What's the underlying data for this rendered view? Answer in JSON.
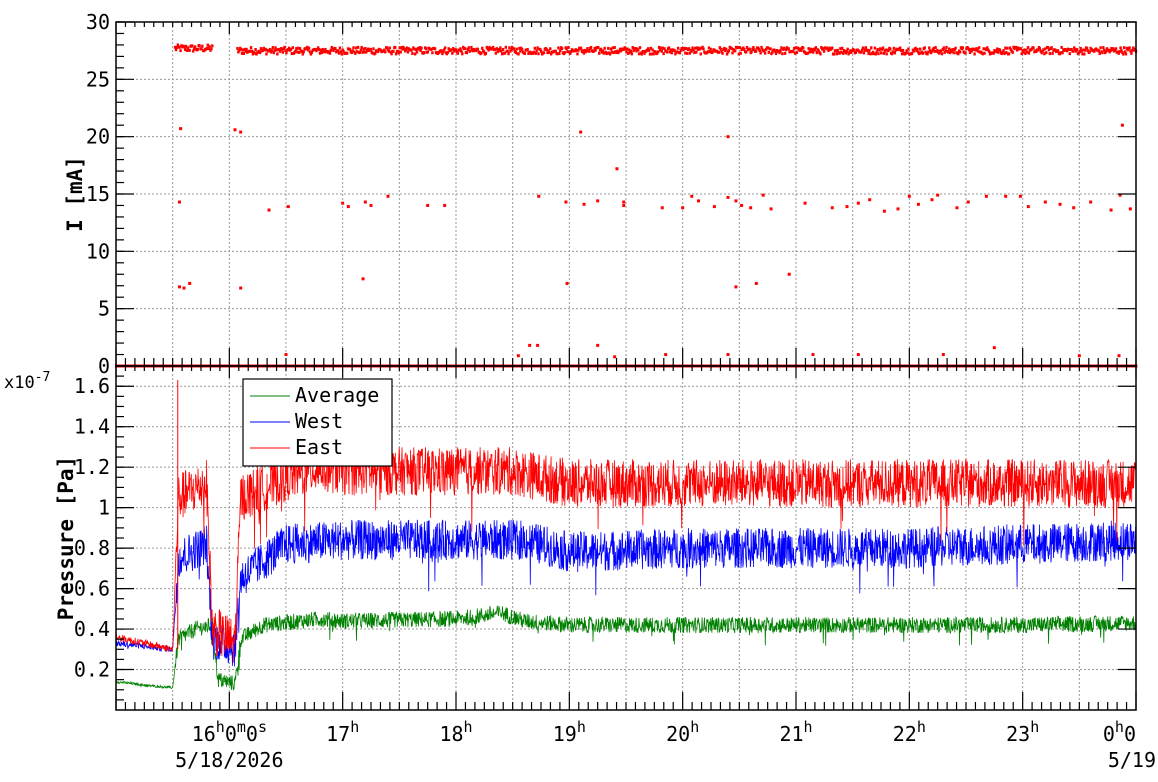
{
  "chart_data": [
    {
      "type": "scatter",
      "panel": "current",
      "ylabel": "I [mA]",
      "ylim": [
        0,
        30
      ],
      "yticks": [
        0,
        5,
        10,
        15,
        20,
        25,
        30
      ],
      "grid": true,
      "xlim_hours": [
        15.0,
        24.0
      ],
      "x_unit": "hour of day 5/18/2026",
      "series": [
        {
          "name": "East",
          "color": "#ff0000",
          "segments": [
            {
              "x_start": 15.52,
              "x_end": 15.85,
              "y": 27.7
            },
            {
              "x_start": 16.07,
              "x_end": 24.0,
              "y": 27.5
            },
            {
              "x_start": 15.0,
              "x_end": 24.0,
              "y": 0.0
            }
          ],
          "points": [
            {
              "x": 15.57,
              "y": 20.7
            },
            {
              "x": 15.56,
              "y": 14.3
            },
            {
              "x": 15.56,
              "y": 6.9
            },
            {
              "x": 15.6,
              "y": 6.8
            },
            {
              "x": 15.65,
              "y": 7.2
            },
            {
              "x": 16.05,
              "y": 20.6
            },
            {
              "x": 16.1,
              "y": 20.4
            },
            {
              "x": 16.1,
              "y": 6.8
            },
            {
              "x": 16.35,
              "y": 13.6
            },
            {
              "x": 16.52,
              "y": 13.9
            },
            {
              "x": 16.5,
              "y": 1.0
            },
            {
              "x": 17.0,
              "y": 14.2
            },
            {
              "x": 17.05,
              "y": 13.9
            },
            {
              "x": 17.2,
              "y": 14.3
            },
            {
              "x": 17.25,
              "y": 14.0
            },
            {
              "x": 17.18,
              "y": 7.6
            },
            {
              "x": 17.4,
              "y": 14.8
            },
            {
              "x": 17.75,
              "y": 14.0
            },
            {
              "x": 17.9,
              "y": 14.0
            },
            {
              "x": 18.73,
              "y": 14.8
            },
            {
              "x": 18.65,
              "y": 1.8
            },
            {
              "x": 18.72,
              "y": 1.8
            },
            {
              "x": 18.97,
              "y": 14.3
            },
            {
              "x": 18.98,
              "y": 7.2
            },
            {
              "x": 19.1,
              "y": 20.4
            },
            {
              "x": 19.13,
              "y": 14.1
            },
            {
              "x": 19.25,
              "y": 14.4
            },
            {
              "x": 19.42,
              "y": 17.2
            },
            {
              "x": 19.48,
              "y": 14.3
            },
            {
              "x": 19.48,
              "y": 14.0
            },
            {
              "x": 19.25,
              "y": 1.8
            },
            {
              "x": 19.82,
              "y": 13.8
            },
            {
              "x": 20.0,
              "y": 13.8
            },
            {
              "x": 20.08,
              "y": 14.8
            },
            {
              "x": 20.14,
              "y": 14.4
            },
            {
              "x": 20.28,
              "y": 13.9
            },
            {
              "x": 20.4,
              "y": 14.7
            },
            {
              "x": 20.4,
              "y": 20.0
            },
            {
              "x": 20.47,
              "y": 14.4
            },
            {
              "x": 20.52,
              "y": 14.0
            },
            {
              "x": 20.6,
              "y": 13.8
            },
            {
              "x": 20.47,
              "y": 6.9
            },
            {
              "x": 20.65,
              "y": 7.2
            },
            {
              "x": 20.71,
              "y": 14.9
            },
            {
              "x": 20.78,
              "y": 13.7
            },
            {
              "x": 20.94,
              "y": 8.0
            },
            {
              "x": 21.08,
              "y": 14.2
            },
            {
              "x": 21.32,
              "y": 13.8
            },
            {
              "x": 21.45,
              "y": 13.9
            },
            {
              "x": 21.55,
              "y": 14.2
            },
            {
              "x": 21.65,
              "y": 14.5
            },
            {
              "x": 21.78,
              "y": 13.5
            },
            {
              "x": 21.9,
              "y": 13.7
            },
            {
              "x": 22.0,
              "y": 14.8
            },
            {
              "x": 22.08,
              "y": 14.1
            },
            {
              "x": 22.2,
              "y": 14.5
            },
            {
              "x": 22.25,
              "y": 14.9
            },
            {
              "x": 22.42,
              "y": 13.8
            },
            {
              "x": 22.52,
              "y": 14.3
            },
            {
              "x": 22.68,
              "y": 14.8
            },
            {
              "x": 22.85,
              "y": 14.8
            },
            {
              "x": 22.98,
              "y": 14.8
            },
            {
              "x": 23.05,
              "y": 13.9
            },
            {
              "x": 23.2,
              "y": 14.3
            },
            {
              "x": 23.33,
              "y": 14.1
            },
            {
              "x": 23.45,
              "y": 13.8
            },
            {
              "x": 23.6,
              "y": 14.3
            },
            {
              "x": 23.78,
              "y": 13.6
            },
            {
              "x": 23.86,
              "y": 14.9
            },
            {
              "x": 23.95,
              "y": 13.7
            },
            {
              "x": 23.88,
              "y": 21.0
            },
            {
              "x": 18.55,
              "y": 0.9
            },
            {
              "x": 19.4,
              "y": 0.8
            },
            {
              "x": 19.85,
              "y": 1.0
            },
            {
              "x": 20.4,
              "y": 1.0
            },
            {
              "x": 21.15,
              "y": 1.0
            },
            {
              "x": 21.55,
              "y": 1.0
            },
            {
              "x": 22.3,
              "y": 1.0
            },
            {
              "x": 22.75,
              "y": 1.6
            },
            {
              "x": 23.5,
              "y": 0.9
            },
            {
              "x": 23.85,
              "y": 0.9
            }
          ]
        }
      ]
    },
    {
      "type": "line",
      "panel": "pressure",
      "ylabel": "Pressure [Pa]",
      "y_multiplier": "x10",
      "y_multiplier_exp": "-7",
      "ylim": [
        0.0,
        1.7
      ],
      "yticks": [
        "0.2",
        "0.4",
        "0.6",
        "0.8",
        "1",
        "1.2",
        "1.4",
        "1.6"
      ],
      "grid": true,
      "legend_placement": "top-left",
      "xlim_hours": [
        15.0,
        24.0
      ],
      "x_tick_labels": [
        {
          "hour": 16,
          "main": "16",
          "sup": "h",
          "main2": "0",
          "sup2": "m",
          "main3": "0",
          "sup3": "s"
        },
        {
          "hour": 17,
          "main": "17",
          "sup": "h"
        },
        {
          "hour": 18,
          "main": "18",
          "sup": "h"
        },
        {
          "hour": 19,
          "main": "19",
          "sup": "h"
        },
        {
          "hour": 20,
          "main": "20",
          "sup": "h"
        },
        {
          "hour": 21,
          "main": "21",
          "sup": "h"
        },
        {
          "hour": 22,
          "main": "22",
          "sup": "h"
        },
        {
          "hour": 23,
          "main": "23",
          "sup": "h"
        },
        {
          "hour": 24,
          "main": "0",
          "sup": "h",
          "main2": "0"
        }
      ],
      "date_labels": [
        {
          "hour": 16,
          "text": "5/18/2026"
        },
        {
          "hour": 24,
          "text": "5/19"
        }
      ],
      "series": [
        {
          "name": "Average",
          "color": "#008000",
          "baseline": [
            [
              15.0,
              0.14
            ],
            [
              15.3,
              0.12
            ],
            [
              15.5,
              0.11
            ],
            [
              15.55,
              0.35
            ],
            [
              15.7,
              0.4
            ],
            [
              15.85,
              0.42
            ],
            [
              15.9,
              0.15
            ],
            [
              16.05,
              0.13
            ],
            [
              16.1,
              0.35
            ],
            [
              16.3,
              0.42
            ],
            [
              16.8,
              0.45
            ],
            [
              17.0,
              0.44
            ],
            [
              18.0,
              0.45
            ],
            [
              18.4,
              0.48
            ],
            [
              18.6,
              0.44
            ],
            [
              19.0,
              0.42
            ],
            [
              20.0,
              0.42
            ],
            [
              21.0,
              0.42
            ],
            [
              22.0,
              0.42
            ],
            [
              23.0,
              0.42
            ],
            [
              24.0,
              0.43
            ]
          ],
          "noise": 0.04
        },
        {
          "name": "West",
          "color": "#0000ff",
          "baseline": [
            [
              15.0,
              0.33
            ],
            [
              15.5,
              0.3
            ],
            [
              15.55,
              0.75
            ],
            [
              15.8,
              0.82
            ],
            [
              15.85,
              0.35
            ],
            [
              16.05,
              0.31
            ],
            [
              16.1,
              0.65
            ],
            [
              16.5,
              0.82
            ],
            [
              17.0,
              0.84
            ],
            [
              18.0,
              0.84
            ],
            [
              18.6,
              0.84
            ],
            [
              19.0,
              0.78
            ],
            [
              20.0,
              0.8
            ],
            [
              21.0,
              0.8
            ],
            [
              22.0,
              0.8
            ],
            [
              23.0,
              0.82
            ],
            [
              24.0,
              0.84
            ]
          ],
          "noise": 0.1
        },
        {
          "name": "East",
          "color": "#ff0000",
          "baseline": [
            [
              15.0,
              0.36
            ],
            [
              15.5,
              0.3
            ],
            [
              15.55,
              1.05
            ],
            [
              15.8,
              1.12
            ],
            [
              15.85,
              0.4
            ],
            [
              16.05,
              0.33
            ],
            [
              16.1,
              1.05
            ],
            [
              16.5,
              1.15
            ],
            [
              16.8,
              1.2
            ],
            [
              17.0,
              1.18
            ],
            [
              18.0,
              1.18
            ],
            [
              18.5,
              1.18
            ],
            [
              19.0,
              1.12
            ],
            [
              20.0,
              1.12
            ],
            [
              21.0,
              1.12
            ],
            [
              22.0,
              1.12
            ],
            [
              23.0,
              1.12
            ],
            [
              24.0,
              1.12
            ]
          ],
          "noise": 0.12
        }
      ]
    }
  ]
}
